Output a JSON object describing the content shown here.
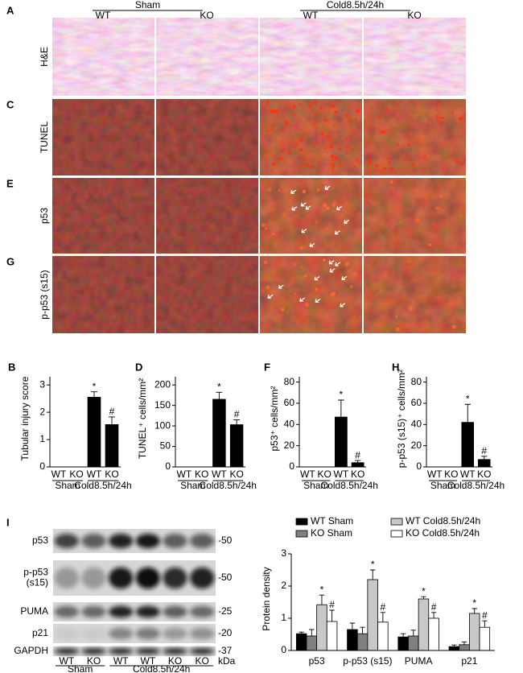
{
  "images": {
    "letters": [
      "A",
      "C",
      "E",
      "G"
    ],
    "rows": [
      "H&E",
      "TUNEL",
      "p53",
      "p-p53 (s15)"
    ],
    "groups": [
      "Sham",
      "Cold8.5h/24h"
    ],
    "columns": [
      "WT",
      "KO",
      "WT",
      "KO"
    ]
  },
  "blot": {
    "letter": "I",
    "rows": [
      [
        "p53"
      ],
      [
        "p-p53",
        "(s15)"
      ],
      [
        "PUMA"
      ],
      [
        "p21"
      ],
      [
        "GAPDH"
      ]
    ],
    "markers": [
      "-50",
      "-50",
      "-25",
      "-20",
      "-37"
    ],
    "unit": "kDa",
    "lanes": [
      "WT",
      "KO",
      "WT",
      "WT",
      "KO",
      "KO"
    ],
    "groups": [
      "Sham",
      "Cold8.5h/24h"
    ]
  },
  "chart_data": [
    {
      "type": "bar",
      "panel": "B",
      "ylabel": "Tubular injury score",
      "categories": [
        "WT",
        "KO",
        "WT",
        "KO"
      ],
      "groups": [
        "Sham",
        "Cold8.5h/24h"
      ],
      "values": [
        0,
        0,
        2.55,
        1.55
      ],
      "errors": [
        0,
        0,
        0.2,
        0.28
      ],
      "bar_labels": [
        null,
        null,
        "*",
        "#"
      ],
      "color": "#000000",
      "ylim": [
        0,
        3.3
      ],
      "yticks": [
        0,
        1,
        2,
        3
      ]
    },
    {
      "type": "bar",
      "panel": "D",
      "ylabel": "TUNEL⁺ cells/mm²",
      "categories": [
        "WT",
        "KO",
        "WT",
        "KO"
      ],
      "groups": [
        "Sham",
        "Cold8.5h/24h"
      ],
      "values": [
        0,
        0,
        165,
        103
      ],
      "errors": [
        0,
        0,
        17,
        12
      ],
      "bar_labels": [
        null,
        null,
        "*",
        "#"
      ],
      "color": "#000000",
      "ylim": [
        0,
        220
      ],
      "yticks": [
        0,
        50,
        100,
        150,
        200
      ]
    },
    {
      "type": "bar",
      "panel": "F",
      "ylabel": "p53⁺ cells/mm²",
      "categories": [
        "WT",
        "KO",
        "WT",
        "KO"
      ],
      "groups": [
        "Sham",
        "Cold8.5h/24h"
      ],
      "values": [
        0,
        0,
        47,
        4
      ],
      "errors": [
        0,
        0,
        16,
        2
      ],
      "bar_labels": [
        null,
        null,
        "*",
        "#"
      ],
      "color": "#000000",
      "ylim": [
        0,
        85
      ],
      "yticks": [
        0,
        20,
        40,
        60,
        80
      ]
    },
    {
      "type": "bar",
      "panel": "H",
      "ylabel": "p-p53 (s15)⁺ cells/mm²",
      "categories": [
        "WT",
        "KO",
        "WT",
        "KO"
      ],
      "groups": [
        "Sham",
        "Cold8.5h/24h"
      ],
      "values": [
        0,
        0,
        42,
        7
      ],
      "errors": [
        0,
        0,
        17,
        3
      ],
      "bar_labels": [
        null,
        null,
        "*",
        "#"
      ],
      "color": "#000000",
      "ylim": [
        0,
        85
      ],
      "yticks": [
        0,
        20,
        40,
        60,
        80
      ]
    },
    {
      "type": "grouped_bar",
      "ylabel": "Protein density",
      "categories": [
        "p53",
        "p-p53 (s15)",
        "PUMA",
        "p21"
      ],
      "ylim": [
        0,
        3
      ],
      "yticks": [
        0,
        1,
        2,
        3
      ],
      "series": [
        {
          "name": "WT Sham",
          "color": "#000000",
          "values": [
            0.52,
            0.65,
            0.42,
            0.12
          ],
          "errors": [
            0.05,
            0.2,
            0.1,
            0.05
          ],
          "bar_labels": [
            null,
            null,
            null,
            null
          ]
        },
        {
          "name": "KO Sham",
          "color": "#808080",
          "values": [
            0.45,
            0.52,
            0.45,
            0.18
          ],
          "errors": [
            0.2,
            0.2,
            0.18,
            0.08
          ],
          "bar_labels": [
            null,
            null,
            null,
            null
          ]
        },
        {
          "name": "WT Cold8.5h/24h",
          "color": "#c8c8c8",
          "values": [
            1.42,
            2.2,
            1.6,
            1.15
          ],
          "errors": [
            0.3,
            0.3,
            0.07,
            0.15
          ],
          "bar_labels": [
            "*",
            "*",
            "*",
            "*"
          ]
        },
        {
          "name": "KO Cold8.5h/24h",
          "color": "#ffffff",
          "values": [
            0.9,
            0.88,
            1.0,
            0.72
          ],
          "errors": [
            0.35,
            0.3,
            0.18,
            0.2
          ],
          "bar_labels": [
            "#",
            "#",
            "#",
            "#"
          ]
        }
      ]
    }
  ]
}
